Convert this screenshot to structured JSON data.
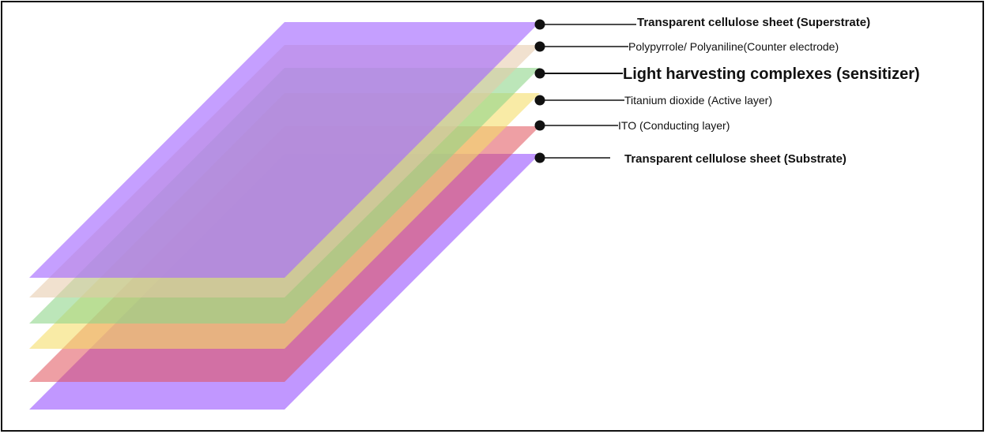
{
  "diagram": {
    "layers": [
      {
        "id": "superstrate",
        "label": "Transparent cellulose sheet (Superstrate)",
        "color": "#a66bff",
        "opacity": 0.65,
        "weight": "bold"
      },
      {
        "id": "counter-electrode",
        "label": "Polypyrrole/ Polyaniline(Counter electrode)",
        "color": "#e6c9a8",
        "opacity": 0.55,
        "weight": "normal"
      },
      {
        "id": "sensitizer",
        "label": "Light harvesting complexes (sensitizer)",
        "color": "#8fd68a",
        "opacity": 0.6,
        "weight": "bold"
      },
      {
        "id": "active-layer",
        "label": "Titanium dioxide (Active layer)",
        "color": "#f5de6a",
        "opacity": 0.6,
        "weight": "normal"
      },
      {
        "id": "conducting-layer",
        "label": "ITO  (Conducting layer)",
        "color": "#e0505a",
        "opacity": 0.55,
        "weight": "normal"
      },
      {
        "id": "substrate",
        "label": "Transparent cellulose sheet (Substrate)",
        "color": "#a66bff",
        "opacity": 0.7,
        "weight": "bold"
      }
    ],
    "dot_color": "#111111",
    "line_color": "#111111"
  }
}
